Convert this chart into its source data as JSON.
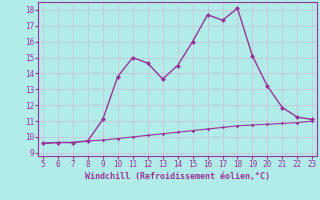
{
  "xlabel": "Windchill (Refroidissement éolien,°C)",
  "x_curve1": [
    5,
    6,
    7,
    8,
    9,
    10,
    11,
    12,
    13,
    14,
    15,
    16,
    17,
    18,
    19,
    20,
    21,
    22,
    23
  ],
  "y_curve1": [
    9.6,
    9.65,
    9.65,
    9.75,
    11.1,
    13.8,
    15.0,
    14.65,
    13.65,
    14.5,
    16.0,
    17.7,
    17.35,
    18.1,
    15.1,
    13.2,
    11.85,
    11.25,
    11.1
  ],
  "x_curve2": [
    5,
    6,
    7,
    8,
    9,
    10,
    11,
    12,
    13,
    14,
    15,
    16,
    17,
    18,
    19,
    20,
    21,
    22,
    23
  ],
  "y_curve2": [
    9.6,
    9.65,
    9.65,
    9.75,
    9.8,
    9.9,
    10.0,
    10.1,
    10.2,
    10.3,
    10.4,
    10.5,
    10.6,
    10.7,
    10.75,
    10.8,
    10.85,
    10.9,
    11.0
  ],
  "line_color": "#993399",
  "bg_color": "#b2ece8",
  "grid_color": "#c8c8dc",
  "text_color": "#993399",
  "xlim": [
    4.7,
    23.3
  ],
  "ylim": [
    8.8,
    18.5
  ],
  "yticks": [
    9,
    10,
    11,
    12,
    13,
    14,
    15,
    16,
    17,
    18
  ],
  "xticks": [
    5,
    6,
    7,
    8,
    9,
    10,
    11,
    12,
    13,
    14,
    15,
    16,
    17,
    18,
    19,
    20,
    21,
    22,
    23
  ]
}
